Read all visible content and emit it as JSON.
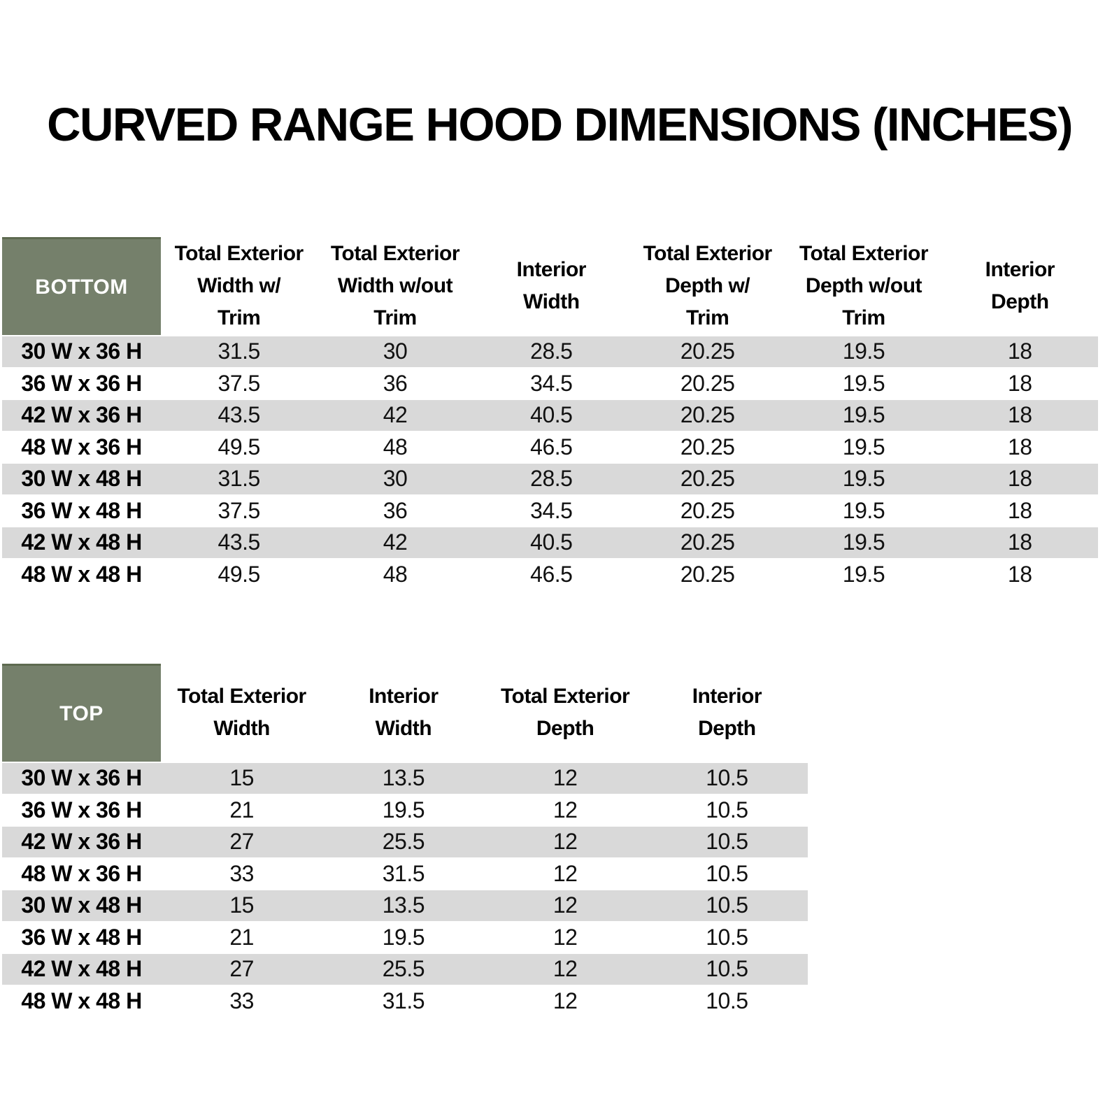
{
  "title": "CURVED RANGE HOOD DIMENSIONS (INCHES)",
  "colors": {
    "header_green": "#75806B",
    "header_green_dark": "#5E6A50",
    "row_stripe_gray": "#D9D9D9",
    "header_text": "#FFFFFF",
    "body_text": "#000000"
  },
  "bottom_table": {
    "header_label": "BOTTOM",
    "columns": [
      "Total Exterior\nWidth w/\nTrim",
      "Total Exterior\nWidth w/out\nTrim",
      "Interior\nWidth",
      "Total Exterior\nDepth w/\nTrim",
      "Total Exterior\nDepth w/out\nTrim",
      "Interior\nDepth"
    ],
    "rows": [
      {
        "label": "30 W x 36 H",
        "values": [
          "31.5",
          "30",
          "28.5",
          "20.25",
          "19.5",
          "18"
        ]
      },
      {
        "label": "36 W x 36 H",
        "values": [
          "37.5",
          "36",
          "34.5",
          "20.25",
          "19.5",
          "18"
        ]
      },
      {
        "label": "42 W x 36 H",
        "values": [
          "43.5",
          "42",
          "40.5",
          "20.25",
          "19.5",
          "18"
        ]
      },
      {
        "label": "48 W x 36 H",
        "values": [
          "49.5",
          "48",
          "46.5",
          "20.25",
          "19.5",
          "18"
        ]
      },
      {
        "label": "30 W x 48 H",
        "values": [
          "31.5",
          "30",
          "28.5",
          "20.25",
          "19.5",
          "18"
        ]
      },
      {
        "label": "36 W x 48 H",
        "values": [
          "37.5",
          "36",
          "34.5",
          "20.25",
          "19.5",
          "18"
        ]
      },
      {
        "label": "42 W x 48 H",
        "values": [
          "43.5",
          "42",
          "40.5",
          "20.25",
          "19.5",
          "18"
        ]
      },
      {
        "label": "48 W x 48 H",
        "values": [
          "49.5",
          "48",
          "46.5",
          "20.25",
          "19.5",
          "18"
        ]
      }
    ]
  },
  "top_table": {
    "header_label": "TOP",
    "columns": [
      "Total Exterior\nWidth",
      "Interior\nWidth",
      "Total Exterior\nDepth",
      "Interior\nDepth"
    ],
    "rows": [
      {
        "label": "30 W x 36 H",
        "values": [
          "15",
          "13.5",
          "12",
          "10.5"
        ]
      },
      {
        "label": "36 W x 36 H",
        "values": [
          "21",
          "19.5",
          "12",
          "10.5"
        ]
      },
      {
        "label": "42 W x 36 H",
        "values": [
          "27",
          "25.5",
          "12",
          "10.5"
        ]
      },
      {
        "label": "48 W x 36 H",
        "values": [
          "33",
          "31.5",
          "12",
          "10.5"
        ]
      },
      {
        "label": "30 W x 48 H",
        "values": [
          "15",
          "13.5",
          "12",
          "10.5"
        ]
      },
      {
        "label": "36 W x 48 H",
        "values": [
          "21",
          "19.5",
          "12",
          "10.5"
        ]
      },
      {
        "label": "42 W x 48 H",
        "values": [
          "27",
          "25.5",
          "12",
          "10.5"
        ]
      },
      {
        "label": "48 W x 48 H",
        "values": [
          "33",
          "31.5",
          "12",
          "10.5"
        ]
      }
    ]
  }
}
